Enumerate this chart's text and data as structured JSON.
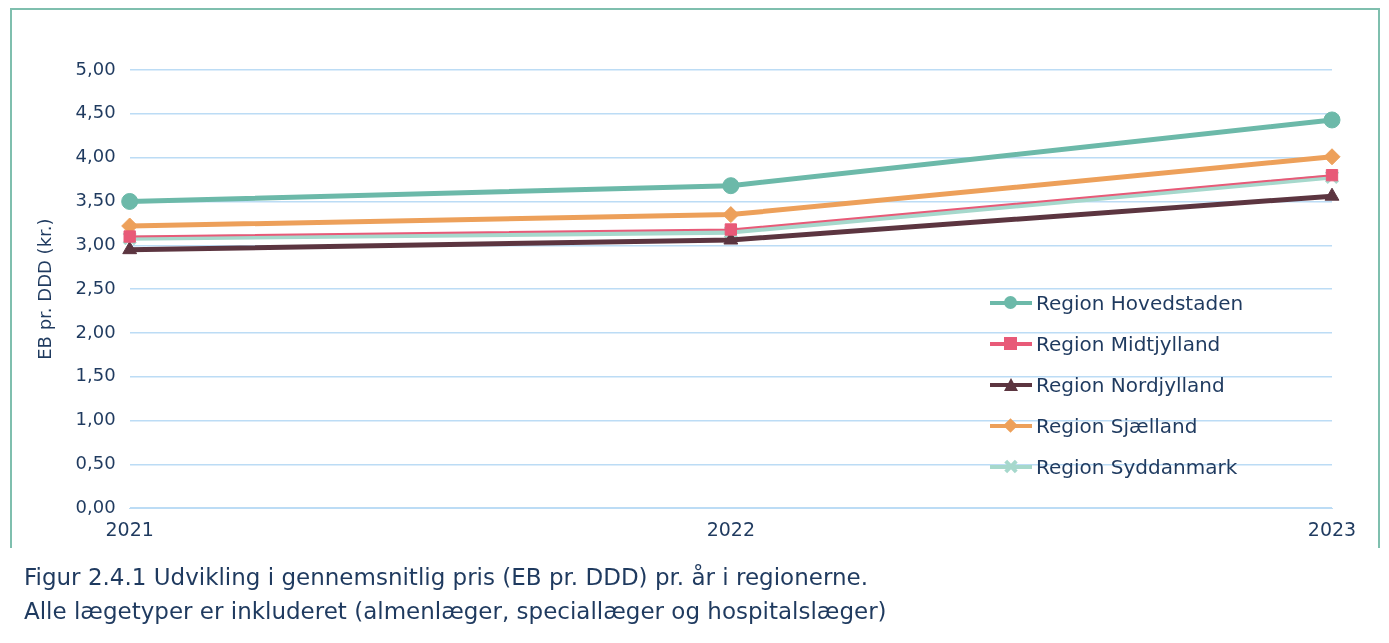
{
  "chart_data": {
    "type": "line",
    "ylabel": "EB pr. DDD (kr.)",
    "categories": [
      "2021",
      "2022",
      "2023"
    ],
    "series": [
      {
        "name": "Region Hovedstaden",
        "color": "#6cb9a9",
        "marker": "circle",
        "values": [
          3.5,
          3.68,
          4.43
        ]
      },
      {
        "name": "Region Midtjylland",
        "color": "#e85a78",
        "marker": "square",
        "values": [
          3.1,
          3.18,
          3.8
        ]
      },
      {
        "name": "Region Nordjylland",
        "color": "#5c3540",
        "marker": "triangle",
        "values": [
          2.95,
          3.06,
          3.56
        ]
      },
      {
        "name": "Region Sjælland",
        "color": "#eda05a",
        "marker": "diamond",
        "values": [
          3.22,
          3.35,
          4.01
        ]
      },
      {
        "name": "Region Syddanmark",
        "color": "#a6d8cc",
        "marker": "cross",
        "values": [
          3.08,
          3.15,
          3.78
        ]
      }
    ],
    "ylim": [
      0,
      5
    ],
    "yticks": [
      {
        "value": 0,
        "label": "0,00"
      },
      {
        "value": 0.5,
        "label": "0,50"
      },
      {
        "value": 1,
        "label": "1,00"
      },
      {
        "value": 1.5,
        "label": "1,50"
      },
      {
        "value": 2,
        "label": "2,00"
      },
      {
        "value": 2.5,
        "label": "2,50"
      },
      {
        "value": 3,
        "label": "3,00"
      },
      {
        "value": 3.5,
        "label": "3,50"
      },
      {
        "value": 4,
        "label": "4,00"
      },
      {
        "value": 4.5,
        "label": "4,50"
      },
      {
        "value": 5,
        "label": "5,00"
      }
    ],
    "grid": "y",
    "legend": "bottom right",
    "annotations": [
      "Figur 2.4.1 Udvikling i gennemsnitlig pris (EB pr. DDD) pr. år i regionerne.",
      "Alle lægetyper er inkluderet (almenlæger, speciallæger og hospitalslæger)"
    ]
  }
}
